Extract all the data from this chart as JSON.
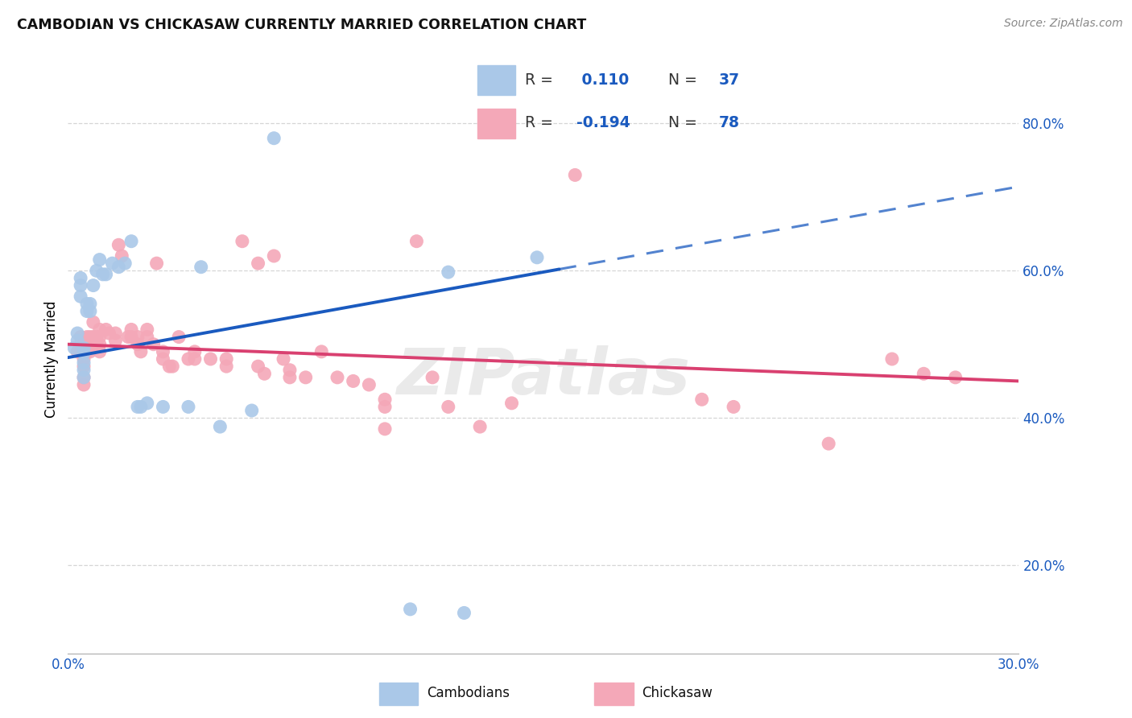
{
  "title": "CAMBODIAN VS CHICKASAW CURRENTLY MARRIED CORRELATION CHART",
  "source": "Source: ZipAtlas.com",
  "ylabel": "Currently Married",
  "watermark": "ZIPatlas",
  "R_cambodian": 0.11,
  "N_cambodian": 37,
  "R_chickasaw": -0.194,
  "N_chickasaw": 78,
  "cambodian_color": "#aac8e8",
  "chickasaw_color": "#f4a8b8",
  "trend_cambodian_color": "#1a5abf",
  "trend_chickasaw_color": "#d94070",
  "xlim": [
    0.0,
    0.3
  ],
  "ylim": [
    0.08,
    0.88
  ],
  "yticks": [
    0.2,
    0.4,
    0.6,
    0.8
  ],
  "ytick_labels": [
    "20.0%",
    "40.0%",
    "60.0%",
    "80.0%"
  ],
  "xticks": [
    0.0,
    0.05,
    0.1,
    0.15,
    0.2,
    0.25,
    0.3
  ],
  "xtick_labels": [
    "0.0%",
    "",
    "",
    "",
    "",
    "",
    "30.0%"
  ],
  "cambodian_x": [
    0.002,
    0.003,
    0.003,
    0.004,
    0.004,
    0.004,
    0.005,
    0.005,
    0.005,
    0.005,
    0.005,
    0.006,
    0.006,
    0.007,
    0.007,
    0.008,
    0.009,
    0.01,
    0.011,
    0.012,
    0.014,
    0.016,
    0.018,
    0.02,
    0.022,
    0.023,
    0.025,
    0.03,
    0.038,
    0.042,
    0.048,
    0.058,
    0.065,
    0.12,
    0.148,
    0.125,
    0.108
  ],
  "cambodian_y": [
    0.495,
    0.515,
    0.505,
    0.59,
    0.58,
    0.565,
    0.495,
    0.488,
    0.475,
    0.465,
    0.455,
    0.555,
    0.545,
    0.555,
    0.545,
    0.58,
    0.6,
    0.615,
    0.595,
    0.595,
    0.61,
    0.605,
    0.61,
    0.64,
    0.415,
    0.415,
    0.42,
    0.415,
    0.415,
    0.605,
    0.388,
    0.41,
    0.78,
    0.598,
    0.618,
    0.135,
    0.14
  ],
  "chickasaw_x": [
    0.003,
    0.004,
    0.004,
    0.004,
    0.005,
    0.005,
    0.005,
    0.005,
    0.005,
    0.006,
    0.006,
    0.006,
    0.007,
    0.007,
    0.007,
    0.008,
    0.008,
    0.009,
    0.009,
    0.01,
    0.01,
    0.01,
    0.01,
    0.012,
    0.013,
    0.015,
    0.015,
    0.016,
    0.017,
    0.019,
    0.02,
    0.02,
    0.022,
    0.022,
    0.023,
    0.025,
    0.025,
    0.027,
    0.028,
    0.03,
    0.03,
    0.032,
    0.033,
    0.035,
    0.038,
    0.04,
    0.04,
    0.045,
    0.05,
    0.05,
    0.055,
    0.06,
    0.06,
    0.062,
    0.065,
    0.068,
    0.07,
    0.07,
    0.075,
    0.08,
    0.085,
    0.09,
    0.095,
    0.1,
    0.1,
    0.1,
    0.11,
    0.115,
    0.12,
    0.13,
    0.14,
    0.16,
    0.2,
    0.21,
    0.24,
    0.26,
    0.27,
    0.28
  ],
  "chickasaw_y": [
    0.49,
    0.51,
    0.5,
    0.49,
    0.49,
    0.48,
    0.47,
    0.455,
    0.445,
    0.51,
    0.5,
    0.49,
    0.51,
    0.5,
    0.49,
    0.53,
    0.51,
    0.51,
    0.5,
    0.52,
    0.51,
    0.5,
    0.49,
    0.52,
    0.515,
    0.515,
    0.505,
    0.635,
    0.62,
    0.51,
    0.52,
    0.51,
    0.51,
    0.5,
    0.49,
    0.52,
    0.51,
    0.5,
    0.61,
    0.49,
    0.48,
    0.47,
    0.47,
    0.51,
    0.48,
    0.49,
    0.48,
    0.48,
    0.48,
    0.47,
    0.64,
    0.61,
    0.47,
    0.46,
    0.62,
    0.48,
    0.465,
    0.455,
    0.455,
    0.49,
    0.455,
    0.45,
    0.445,
    0.425,
    0.415,
    0.385,
    0.64,
    0.455,
    0.415,
    0.388,
    0.42,
    0.73,
    0.425,
    0.415,
    0.365,
    0.48,
    0.46,
    0.455
  ]
}
